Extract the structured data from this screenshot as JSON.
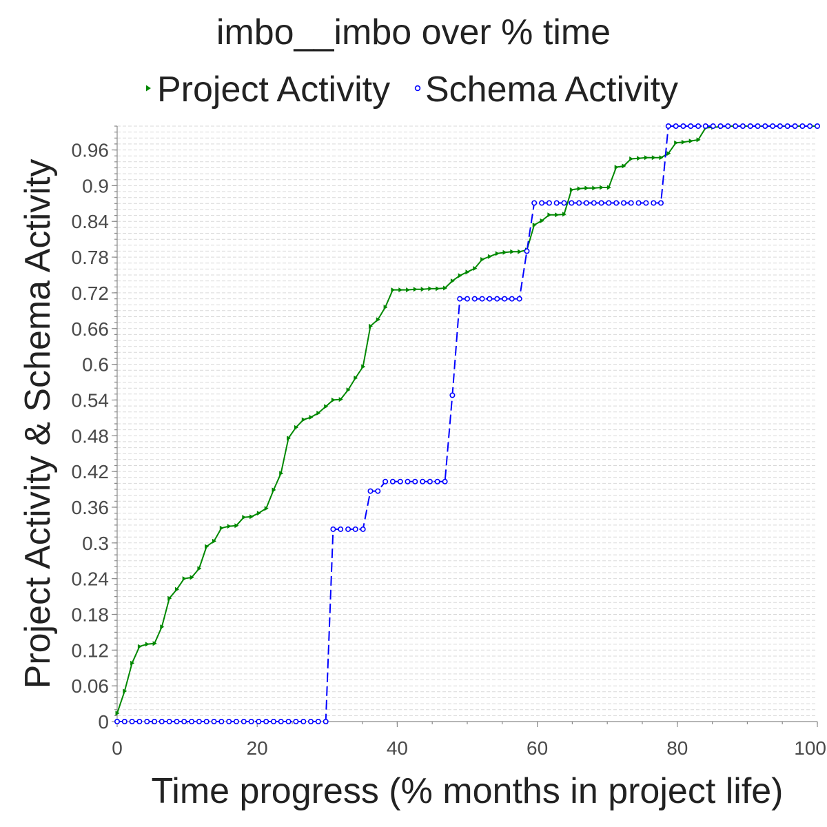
{
  "chart_data": {
    "type": "line",
    "title": "imbo__imbo over % time",
    "xlabel": "Time progress (% months in project life)",
    "ylabel": "Project Activity & Schema Activity",
    "xlim": [
      0,
      100
    ],
    "ylim": [
      0,
      1
    ],
    "x_ticks": [
      "0",
      "20",
      "40",
      "60",
      "80",
      "100"
    ],
    "y_ticks": [
      "0",
      "0.06",
      "0.12",
      "0.18",
      "0.24",
      "0.3",
      "0.36",
      "0.42",
      "0.48",
      "0.54",
      "0.6",
      "0.66",
      "0.72",
      "0.78",
      "0.84",
      "0.9",
      "0.96"
    ],
    "grid": true,
    "legend_position": "top",
    "x": [
      0,
      1.06,
      2.13,
      3.19,
      4.26,
      5.32,
      6.38,
      7.45,
      8.51,
      9.57,
      10.64,
      11.7,
      12.77,
      13.83,
      14.89,
      15.96,
      17.02,
      18.09,
      19.15,
      20.21,
      21.28,
      22.34,
      23.4,
      24.47,
      25.53,
      26.6,
      27.66,
      28.72,
      29.79,
      30.85,
      31.91,
      32.98,
      34.04,
      35.11,
      36.17,
      37.23,
      38.3,
      39.36,
      40.43,
      41.49,
      42.55,
      43.62,
      44.68,
      45.74,
      46.81,
      47.87,
      48.94,
      50,
      51.06,
      52.13,
      53.19,
      54.26,
      55.32,
      56.38,
      57.45,
      58.51,
      59.57,
      60.64,
      61.7,
      62.77,
      63.83,
      64.89,
      65.96,
      67.02,
      68.09,
      69.15,
      70.21,
      71.28,
      72.34,
      73.4,
      74.47,
      75.53,
      76.6,
      77.66,
      78.72,
      79.79,
      80.85,
      81.91,
      82.98,
      84.04,
      85.11,
      86.17,
      87.23,
      88.3,
      89.36,
      90.43,
      91.49,
      92.55,
      93.62,
      94.68,
      95.74,
      96.81,
      97.87,
      98.94,
      100
    ],
    "series": [
      {
        "name": "Project Activity",
        "color": "#008800",
        "marker": "triangle-right",
        "line_style": "solid",
        "values": [
          0.014,
          0.051,
          0.098,
          0.126,
          0.13,
          0.131,
          0.159,
          0.207,
          0.222,
          0.24,
          0.242,
          0.257,
          0.294,
          0.303,
          0.325,
          0.328,
          0.329,
          0.343,
          0.344,
          0.35,
          0.358,
          0.389,
          0.417,
          0.476,
          0.494,
          0.507,
          0.511,
          0.518,
          0.529,
          0.54,
          0.541,
          0.557,
          0.577,
          0.596,
          0.664,
          0.675,
          0.696,
          0.725,
          0.725,
          0.725,
          0.726,
          0.726,
          0.727,
          0.727,
          0.728,
          0.74,
          0.749,
          0.755,
          0.761,
          0.776,
          0.781,
          0.786,
          0.788,
          0.789,
          0.789,
          0.792,
          0.834,
          0.841,
          0.851,
          0.851,
          0.852,
          0.893,
          0.895,
          0.896,
          0.896,
          0.897,
          0.897,
          0.931,
          0.933,
          0.945,
          0.946,
          0.947,
          0.947,
          0.947,
          0.954,
          0.972,
          0.973,
          0.975,
          0.977,
          0.997,
          0.998,
          0.999,
          1,
          1,
          1,
          1,
          1,
          1,
          1,
          1,
          1,
          1,
          1,
          1,
          1
        ]
      },
      {
        "name": "Schema Activity",
        "color": "#0000ff",
        "marker": "circle",
        "line_style": "dashed",
        "values": [
          0,
          0,
          0,
          0,
          0,
          0,
          0,
          0,
          0,
          0,
          0,
          0,
          0,
          0,
          0,
          0,
          0,
          0,
          0,
          0,
          0,
          0,
          0,
          0,
          0,
          0,
          0,
          0,
          0,
          0.323,
          0.323,
          0.323,
          0.323,
          0.323,
          0.387,
          0.387,
          0.403,
          0.403,
          0.403,
          0.403,
          0.403,
          0.403,
          0.403,
          0.403,
          0.403,
          0.548,
          0.71,
          0.71,
          0.71,
          0.71,
          0.71,
          0.71,
          0.71,
          0.71,
          0.71,
          0.79,
          0.871,
          0.871,
          0.871,
          0.871,
          0.871,
          0.871,
          0.871,
          0.871,
          0.871,
          0.871,
          0.871,
          0.871,
          0.871,
          0.871,
          0.871,
          0.871,
          0.871,
          0.871,
          1,
          1,
          1,
          1,
          1,
          1,
          1,
          1,
          1,
          1,
          1,
          1,
          1,
          1,
          1,
          1,
          1,
          1,
          1,
          1,
          1
        ]
      }
    ]
  }
}
